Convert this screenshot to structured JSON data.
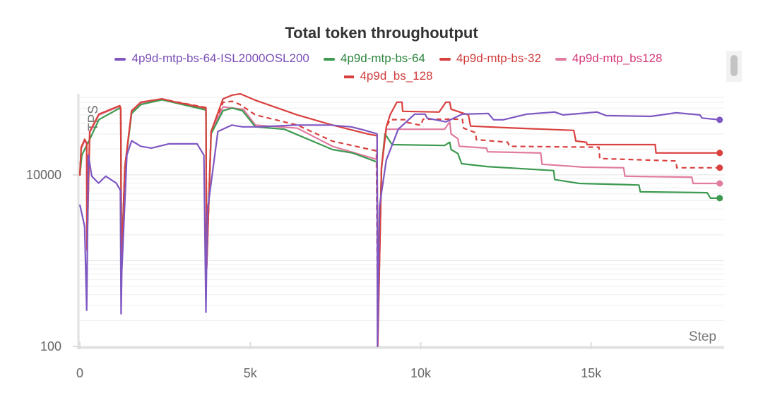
{
  "chart_data": {
    "type": "line",
    "title": "Total token throughoutput",
    "xlabel": "Step",
    "ylabel": "TPS",
    "yscale": "log",
    "xlim": [
      0,
      18900
    ],
    "ylim": [
      100,
      88000
    ],
    "x_ticks": [
      {
        "value": 0,
        "label": "0"
      },
      {
        "value": 5000,
        "label": "5k"
      },
      {
        "value": 10000,
        "label": "10k"
      },
      {
        "value": 15000,
        "label": "15k"
      }
    ],
    "y_ticks": [
      {
        "value": 100,
        "label": "100"
      },
      {
        "value": 10000,
        "label": "10000"
      }
    ],
    "grid": true,
    "legend_placement": "top-center",
    "series": [
      {
        "name": "4p9d-mtp-bs-64-ISL2000OSL200",
        "color": "#7e57c2",
        "label_color": "#7b4fb8",
        "dash": false,
        "points": [
          [
            0,
            4500
          ],
          [
            140,
            2500
          ],
          [
            200,
            263
          ],
          [
            250,
            17000
          ],
          [
            350,
            9640
          ],
          [
            550,
            8000
          ],
          [
            760,
            9640
          ],
          [
            1070,
            8000
          ],
          [
            1190,
            6600
          ],
          [
            1210,
            240
          ],
          [
            1230,
            750
          ],
          [
            1380,
            17000
          ],
          [
            1520,
            25000
          ],
          [
            1790,
            21500
          ],
          [
            2100,
            20500
          ],
          [
            2610,
            23000
          ],
          [
            3440,
            23000
          ],
          [
            3640,
            17000
          ],
          [
            3700,
            250
          ],
          [
            3740,
            3730
          ],
          [
            4050,
            32000
          ],
          [
            4460,
            38000
          ],
          [
            4770,
            36300
          ],
          [
            5290,
            36300
          ],
          [
            6320,
            38000
          ],
          [
            7350,
            38000
          ],
          [
            7960,
            36300
          ],
          [
            8370,
            33000
          ],
          [
            8720,
            30000
          ],
          [
            8730,
            100
          ],
          [
            8790,
            4300
          ],
          [
            8990,
            14900
          ],
          [
            9340,
            34000
          ],
          [
            9820,
            51000
          ],
          [
            10130,
            51000
          ],
          [
            10190,
            45700
          ],
          [
            10740,
            41500
          ],
          [
            11220,
            51000
          ],
          [
            11980,
            52000
          ],
          [
            12140,
            43800
          ],
          [
            12420,
            43800
          ],
          [
            13110,
            51000
          ],
          [
            13930,
            54000
          ],
          [
            14180,
            50000
          ],
          [
            15170,
            54000
          ],
          [
            15440,
            49000
          ],
          [
            16750,
            48000
          ],
          [
            17490,
            53000
          ],
          [
            18190,
            50000
          ],
          [
            18250,
            46000
          ],
          [
            18770,
            43800
          ]
        ]
      },
      {
        "name": "4p9d-mtp-bs-64",
        "color": "#3d9a50",
        "label_color": "#2e8540",
        "dash": false,
        "points": [
          [
            0,
            9800
          ],
          [
            60,
            17000
          ],
          [
            290,
            26000
          ],
          [
            560,
            44000
          ],
          [
            1170,
            60000
          ],
          [
            1200,
            57000
          ],
          [
            1220,
            870
          ],
          [
            1320,
            12000
          ],
          [
            1520,
            52000
          ],
          [
            1790,
            66000
          ],
          [
            2410,
            75000
          ],
          [
            3700,
            57000
          ],
          [
            3720,
            870
          ],
          [
            3850,
            30000
          ],
          [
            4200,
            56000
          ],
          [
            4470,
            60000
          ],
          [
            4770,
            56000
          ],
          [
            5150,
            36300
          ],
          [
            6000,
            34000
          ],
          [
            7410,
            19700
          ],
          [
            8000,
            18000
          ],
          [
            8720,
            14100
          ],
          [
            8740,
            160
          ],
          [
            8850,
            12000
          ],
          [
            8950,
            30000
          ],
          [
            9160,
            22500
          ],
          [
            10700,
            22000
          ],
          [
            10850,
            24000
          ],
          [
            10890,
            19700
          ],
          [
            11090,
            17700
          ],
          [
            11200,
            13500
          ],
          [
            11940,
            12500
          ],
          [
            13900,
            11200
          ],
          [
            13930,
            8800
          ],
          [
            14650,
            7940
          ],
          [
            16400,
            7600
          ],
          [
            16440,
            6340
          ],
          [
            18400,
            6200
          ],
          [
            18500,
            5350
          ],
          [
            18770,
            5350
          ]
        ]
      },
      {
        "name": "4p9d-mtp-bs-32",
        "color": "#d9413f",
        "label_color": "#d13c3c",
        "dash": false,
        "points": [
          [
            0,
            9800
          ],
          [
            40,
            21000
          ],
          [
            140,
            26000
          ],
          [
            200,
            23500
          ],
          [
            210,
            1370
          ],
          [
            290,
            32000
          ],
          [
            560,
            51000
          ],
          [
            1170,
            64000
          ],
          [
            1200,
            60000
          ],
          [
            1220,
            770
          ],
          [
            1320,
            12300
          ],
          [
            1520,
            56000
          ],
          [
            1790,
            70400
          ],
          [
            2410,
            77000
          ],
          [
            2820,
            70400
          ],
          [
            3700,
            60000
          ],
          [
            3720,
            820
          ],
          [
            3850,
            32000
          ],
          [
            4200,
            77000
          ],
          [
            4470,
            85000
          ],
          [
            4710,
            88000
          ],
          [
            5150,
            74000
          ],
          [
            6380,
            50000
          ],
          [
            7410,
            38000
          ],
          [
            8440,
            30000
          ],
          [
            8720,
            28500
          ],
          [
            8740,
            100
          ],
          [
            8850,
            12300
          ],
          [
            8990,
            36300
          ],
          [
            9100,
            50000
          ],
          [
            9300,
            70400
          ],
          [
            9450,
            70400
          ],
          [
            9470,
            55000
          ],
          [
            10540,
            54000
          ],
          [
            10740,
            70400
          ],
          [
            10850,
            70400
          ],
          [
            10890,
            58200
          ],
          [
            11400,
            50000
          ],
          [
            11460,
            37000
          ],
          [
            12550,
            35400
          ],
          [
            14490,
            33000
          ],
          [
            14550,
            24800
          ],
          [
            14860,
            24000
          ],
          [
            14880,
            22500
          ],
          [
            16880,
            22500
          ],
          [
            16900,
            18000
          ],
          [
            18770,
            18000
          ]
        ]
      },
      {
        "name": "4p9d-mtp_bs128",
        "color": "#e07ca0",
        "label_color": "#d63a7a",
        "dash": false,
        "points": [
          [
            0,
            9800
          ],
          [
            40,
            20000
          ],
          [
            140,
            25000
          ],
          [
            200,
            23000
          ],
          [
            210,
            1300
          ],
          [
            290,
            31000
          ],
          [
            560,
            50000
          ],
          [
            1170,
            63000
          ],
          [
            1200,
            59000
          ],
          [
            1220,
            800
          ],
          [
            1320,
            12000
          ],
          [
            1520,
            55000
          ],
          [
            1790,
            69000
          ],
          [
            2410,
            76000
          ],
          [
            2820,
            69000
          ],
          [
            3700,
            59000
          ],
          [
            3720,
            820
          ],
          [
            3850,
            31000
          ],
          [
            4200,
            62000
          ],
          [
            4500,
            60000
          ],
          [
            4800,
            58000
          ],
          [
            5150,
            38000
          ],
          [
            6380,
            35000
          ],
          [
            7410,
            21500
          ],
          [
            8720,
            15100
          ],
          [
            8740,
            120
          ],
          [
            8850,
            12000
          ],
          [
            8990,
            34000
          ],
          [
            9100,
            34000
          ],
          [
            10700,
            34000
          ],
          [
            10850,
            41500
          ],
          [
            10890,
            30000
          ],
          [
            11090,
            26400
          ],
          [
            11130,
            21500
          ],
          [
            11930,
            20500
          ],
          [
            11960,
            18600
          ],
          [
            13520,
            18000
          ],
          [
            13560,
            13300
          ],
          [
            14760,
            12300
          ],
          [
            15950,
            12100
          ],
          [
            15990,
            9640
          ],
          [
            17950,
            9400
          ],
          [
            17990,
            7940
          ],
          [
            18770,
            7940
          ]
        ]
      },
      {
        "name": "4p9d_bs_128",
        "color": "#d9413f",
        "label_color": "#d13c3c",
        "dash": true,
        "points": [
          [
            0,
            9800
          ],
          [
            40,
            20500
          ],
          [
            140,
            25500
          ],
          [
            200,
            23000
          ],
          [
            210,
            1350
          ],
          [
            290,
            31500
          ],
          [
            560,
            50500
          ],
          [
            1170,
            63500
          ],
          [
            1200,
            59500
          ],
          [
            1220,
            790
          ],
          [
            1320,
            12200
          ],
          [
            1520,
            55500
          ],
          [
            1790,
            70000
          ],
          [
            2410,
            76500
          ],
          [
            2820,
            71000
          ],
          [
            3700,
            61000
          ],
          [
            3720,
            820
          ],
          [
            3850,
            31500
          ],
          [
            4200,
            70000
          ],
          [
            4470,
            72000
          ],
          [
            4700,
            66000
          ],
          [
            5150,
            50000
          ],
          [
            6380,
            38000
          ],
          [
            7400,
            24800
          ],
          [
            8700,
            19000
          ],
          [
            8740,
            110
          ],
          [
            8850,
            12000
          ],
          [
            8990,
            36000
          ],
          [
            9100,
            44000
          ],
          [
            9560,
            44000
          ],
          [
            9580,
            41000
          ],
          [
            10000,
            37800
          ],
          [
            10070,
            44500
          ],
          [
            11220,
            44500
          ],
          [
            11260,
            35000
          ],
          [
            11610,
            31000
          ],
          [
            11630,
            25700
          ],
          [
            12550,
            24000
          ],
          [
            12600,
            21500
          ],
          [
            15230,
            21000
          ],
          [
            15250,
            15500
          ],
          [
            17490,
            14500
          ],
          [
            17510,
            12100
          ],
          [
            18770,
            12100
          ]
        ]
      }
    ]
  }
}
